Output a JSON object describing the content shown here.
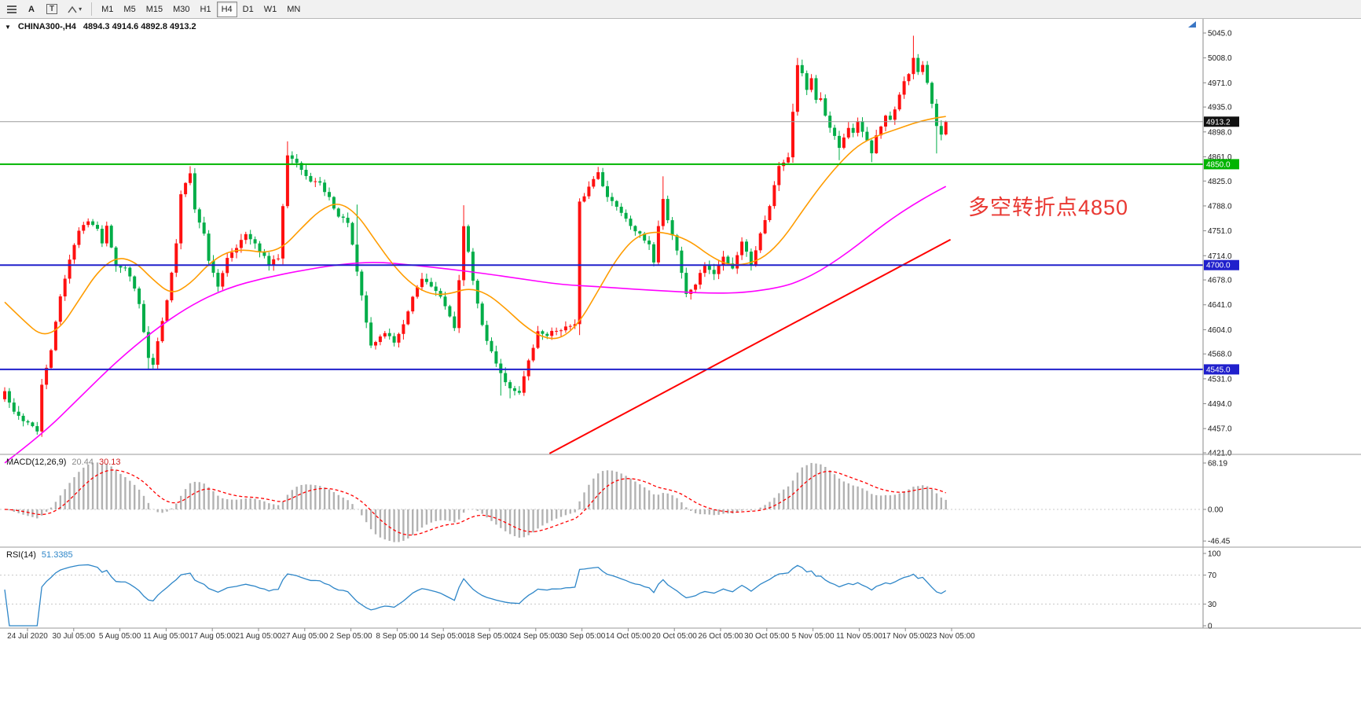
{
  "toolbar": {
    "tools": {
      "a_label": "A",
      "t_label": "T"
    },
    "timeframes": [
      {
        "label": "M1",
        "active": false
      },
      {
        "label": "M5",
        "active": false
      },
      {
        "label": "M15",
        "active": false
      },
      {
        "label": "M30",
        "active": false
      },
      {
        "label": "H1",
        "active": false
      },
      {
        "label": "H4",
        "active": true
      },
      {
        "label": "D1",
        "active": false
      },
      {
        "label": "W1",
        "active": false
      },
      {
        "label": "MN",
        "active": false
      }
    ]
  },
  "header": {
    "symbol": "CHINA300-,H4",
    "ohlc": "4894.3 4914.6 4892.8 4913.2"
  },
  "panels": {
    "macd": {
      "label": "MACD(12,26,9)",
      "value": "20.44",
      "signal": "30.13"
    },
    "rsi": {
      "label": "RSI(14)",
      "value": "51.3385"
    }
  },
  "annotation": {
    "text": "多空转折点4850",
    "color": "#e93832"
  },
  "chart_data": {
    "type": "candlestick",
    "symbol": "CHINA300-",
    "timeframe": "H4",
    "ohlc_current": {
      "open": 4894.3,
      "high": 4914.6,
      "low": 4892.8,
      "close": 4913.2
    },
    "ylim": [
      4421.0,
      5045.0
    ],
    "price_ticks": [
      5045.0,
      5008.0,
      4971.0,
      4935.0,
      4898.0,
      4861.0,
      4825.0,
      4788.0,
      4751.0,
      4714.0,
      4678.0,
      4641.0,
      4604.0,
      4568.0,
      4531.0,
      4494.0,
      4457.0,
      4421.0
    ],
    "time_labels": [
      "24 Jul 2020",
      "30 Jul 05:00",
      "5 Aug 05:00",
      "11 Aug 05:00",
      "17 Aug 05:00",
      "21 Aug 05:00",
      "27 Aug 05:00",
      "2 Sep 05:00",
      "8 Sep 05:00",
      "14 Sep 05:00",
      "18 Sep 05:00",
      "24 Sep 05:00",
      "30 Sep 05:00",
      "14 Oct 05:00",
      "20 Oct 05:00",
      "26 Oct 05:00",
      "30 Oct 05:00",
      "5 Nov 05:00",
      "11 Nov 05:00",
      "17 Nov 05:00",
      "23 Nov 05:00"
    ],
    "candle_count": 204,
    "noise": 6,
    "close_waypoints": [
      [
        0,
        4512
      ],
      [
        2,
        4480
      ],
      [
        4,
        4470
      ],
      [
        6,
        4462
      ],
      [
        7,
        4452
      ],
      [
        8,
        4520
      ],
      [
        10,
        4575
      ],
      [
        12,
        4652
      ],
      [
        14,
        4710
      ],
      [
        16,
        4750
      ],
      [
        18,
        4768
      ],
      [
        20,
        4752
      ],
      [
        21,
        4735
      ],
      [
        22,
        4758
      ],
      [
        24,
        4700
      ],
      [
        26,
        4698
      ],
      [
        28,
        4665
      ],
      [
        29,
        4645
      ],
      [
        31,
        4560
      ],
      [
        32,
        4552
      ],
      [
        34,
        4618
      ],
      [
        35,
        4648
      ],
      [
        37,
        4735
      ],
      [
        38,
        4805
      ],
      [
        40,
        4838
      ],
      [
        41,
        4782
      ],
      [
        43,
        4748
      ],
      [
        44,
        4705
      ],
      [
        46,
        4668
      ],
      [
        48,
        4712
      ],
      [
        50,
        4728
      ],
      [
        52,
        4745
      ],
      [
        55,
        4722
      ],
      [
        57,
        4700
      ],
      [
        59,
        4712
      ],
      [
        60,
        4790
      ],
      [
        61,
        4866
      ],
      [
        63,
        4852
      ],
      [
        65,
        4830
      ],
      [
        68,
        4820
      ],
      [
        70,
        4800
      ],
      [
        72,
        4772
      ],
      [
        74,
        4765
      ],
      [
        76,
        4690
      ],
      [
        78,
        4615
      ],
      [
        79,
        4580
      ],
      [
        82,
        4600
      ],
      [
        84,
        4586
      ],
      [
        86,
        4610
      ],
      [
        88,
        4650
      ],
      [
        90,
        4680
      ],
      [
        93,
        4664
      ],
      [
        95,
        4640
      ],
      [
        97,
        4604
      ],
      [
        98,
        4680
      ],
      [
        99,
        4758
      ],
      [
        100,
        4718
      ],
      [
        102,
        4640
      ],
      [
        104,
        4586
      ],
      [
        107,
        4540
      ],
      [
        109,
        4516
      ],
      [
        111,
        4512
      ],
      [
        113,
        4556
      ],
      [
        115,
        4600
      ],
      [
        117,
        4597
      ],
      [
        120,
        4606
      ],
      [
        123,
        4610
      ],
      [
        124,
        4792
      ],
      [
        126,
        4816
      ],
      [
        128,
        4840
      ],
      [
        130,
        4800
      ],
      [
        132,
        4788
      ],
      [
        134,
        4770
      ],
      [
        136,
        4752
      ],
      [
        139,
        4728
      ],
      [
        140,
        4706
      ],
      [
        141,
        4760
      ],
      [
        142,
        4798
      ],
      [
        143,
        4768
      ],
      [
        145,
        4722
      ],
      [
        147,
        4656
      ],
      [
        149,
        4672
      ],
      [
        151,
        4700
      ],
      [
        153,
        4686
      ],
      [
        155,
        4712
      ],
      [
        157,
        4696
      ],
      [
        159,
        4736
      ],
      [
        161,
        4702
      ],
      [
        163,
        4746
      ],
      [
        165,
        4790
      ],
      [
        167,
        4850
      ],
      [
        168,
        4852
      ],
      [
        169,
        4862
      ],
      [
        170,
        4928
      ],
      [
        171,
        4998
      ],
      [
        172,
        4984
      ],
      [
        173,
        4958
      ],
      [
        174,
        4976
      ],
      [
        175,
        4946
      ],
      [
        176,
        4950
      ],
      [
        177,
        4920
      ],
      [
        178,
        4904
      ],
      [
        179,
        4890
      ],
      [
        180,
        4872
      ],
      [
        181,
        4890
      ],
      [
        182,
        4906
      ],
      [
        183,
        4896
      ],
      [
        184,
        4912
      ],
      [
        185,
        4900
      ],
      [
        186,
        4886
      ],
      [
        187,
        4866
      ],
      [
        188,
        4890
      ],
      [
        189,
        4906
      ],
      [
        190,
        4920
      ],
      [
        191,
        4914
      ],
      [
        192,
        4930
      ],
      [
        193,
        4956
      ],
      [
        194,
        4976
      ],
      [
        195,
        4986
      ],
      [
        196,
        5008
      ],
      [
        197,
        4986
      ],
      [
        198,
        4996
      ],
      [
        199,
        4968
      ],
      [
        200,
        4938
      ],
      [
        201,
        4906
      ],
      [
        202,
        4892
      ],
      [
        203,
        4913.2
      ]
    ],
    "wick_overrides": {
      "7": {
        "low": 4448
      },
      "31": {
        "low": 4544
      },
      "40": {
        "high": 4847
      },
      "61": {
        "high": 4884
      },
      "76": {
        "high": 4790
      },
      "99": {
        "high": 4789
      },
      "107": {
        "low": 4506
      },
      "109": {
        "low": 4502
      },
      "124": {
        "low": 4596
      },
      "128": {
        "high": 4846
      },
      "142": {
        "high": 4832
      },
      "170": {
        "high": 4940
      },
      "171": {
        "high": 5008
      },
      "180": {
        "low": 4856
      },
      "187": {
        "low": 4853
      },
      "196": {
        "high": 5041
      },
      "201": {
        "low": 4866
      }
    },
    "last_candle": [
      4894.3,
      4914.6,
      4892.8,
      4913.2
    ],
    "hlines": [
      {
        "price": 4913.2,
        "color": "#9c9c9c",
        "width": 1,
        "label": "4913.2",
        "label_bg": "#111111"
      },
      {
        "price": 4850.0,
        "color": "#00b400",
        "width": 2,
        "label": "4850.0",
        "label_bg": "#00b400"
      },
      {
        "price": 4700.0,
        "color": "#2020cc",
        "width": 2,
        "label": "4700.0",
        "label_bg": "#2020cc"
      },
      {
        "price": 4545.0,
        "color": "#2020cc",
        "width": 2,
        "label": "4545.0",
        "label_bg": "#2020cc"
      }
    ],
    "trendline": {
      "i1": 117.5,
      "p1": 4420,
      "i2": 204,
      "p2": 4738,
      "color": "#ff0000",
      "width": 2
    },
    "ma_orange": {
      "color": "#ff9c00",
      "points": [
        [
          0,
          4645
        ],
        [
          4,
          4618
        ],
        [
          8,
          4594
        ],
        [
          12,
          4606
        ],
        [
          16,
          4648
        ],
        [
          20,
          4690
        ],
        [
          24,
          4712
        ],
        [
          28,
          4706
        ],
        [
          32,
          4678
        ],
        [
          36,
          4656
        ],
        [
          40,
          4672
        ],
        [
          44,
          4702
        ],
        [
          48,
          4720
        ],
        [
          52,
          4723
        ],
        [
          56,
          4718
        ],
        [
          60,
          4726
        ],
        [
          64,
          4755
        ],
        [
          68,
          4782
        ],
        [
          72,
          4794
        ],
        [
          76,
          4776
        ],
        [
          80,
          4736
        ],
        [
          84,
          4698
        ],
        [
          88,
          4670
        ],
        [
          92,
          4656
        ],
        [
          96,
          4657
        ],
        [
          100,
          4666
        ],
        [
          104,
          4658
        ],
        [
          108,
          4636
        ],
        [
          112,
          4610
        ],
        [
          116,
          4592
        ],
        [
          120,
          4590
        ],
        [
          124,
          4615
        ],
        [
          128,
          4662
        ],
        [
          132,
          4710
        ],
        [
          136,
          4742
        ],
        [
          140,
          4750
        ],
        [
          144,
          4746
        ],
        [
          148,
          4735
        ],
        [
          152,
          4714
        ],
        [
          156,
          4700
        ],
        [
          160,
          4701
        ],
        [
          164,
          4712
        ],
        [
          168,
          4740
        ],
        [
          172,
          4780
        ],
        [
          176,
          4818
        ],
        [
          180,
          4851
        ],
        [
          184,
          4878
        ],
        [
          188,
          4892
        ],
        [
          192,
          4901
        ],
        [
          196,
          4911
        ],
        [
          200,
          4918
        ],
        [
          203,
          4921
        ]
      ]
    },
    "ma_magenta": {
      "color": "#ff00ff",
      "points": [
        [
          0,
          4406
        ],
        [
          8,
          4448
        ],
        [
          16,
          4502
        ],
        [
          24,
          4556
        ],
        [
          32,
          4602
        ],
        [
          40,
          4640
        ],
        [
          48,
          4666
        ],
        [
          56,
          4681
        ],
        [
          64,
          4692
        ],
        [
          72,
          4701
        ],
        [
          80,
          4705
        ],
        [
          88,
          4700
        ],
        [
          96,
          4694
        ],
        [
          104,
          4687
        ],
        [
          112,
          4679
        ],
        [
          120,
          4671
        ],
        [
          128,
          4668
        ],
        [
          136,
          4664
        ],
        [
          144,
          4661
        ],
        [
          152,
          4658
        ],
        [
          160,
          4659
        ],
        [
          168,
          4668
        ],
        [
          172,
          4678
        ],
        [
          176,
          4692
        ],
        [
          180,
          4710
        ],
        [
          184,
          4730
        ],
        [
          188,
          4752
        ],
        [
          192,
          4772
        ],
        [
          196,
          4790
        ],
        [
          200,
          4806
        ],
        [
          203,
          4817
        ]
      ]
    },
    "macd": {
      "params": "12,26,9",
      "value": 20.44,
      "signal_value": 30.13,
      "ticks": [
        68.19,
        0,
        -46.45
      ],
      "tick_labels": [
        "68.19",
        "0.00",
        "-46.45"
      ],
      "hist_color": "#b2b2b2",
      "signal_color": "#ff0000"
    },
    "rsi": {
      "period": 14,
      "value": 51.3385,
      "ticks": [
        100,
        70,
        30,
        0
      ],
      "levels": [
        70,
        30
      ],
      "color": "#2e86c8"
    },
    "colors": {
      "bull": "#ff1010",
      "bear": "#00ad48"
    }
  }
}
